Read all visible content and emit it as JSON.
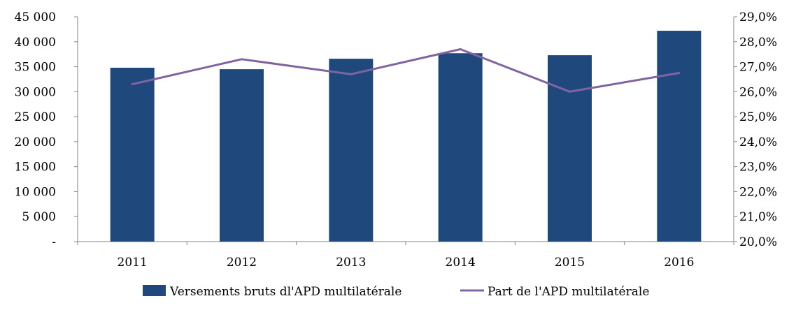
{
  "chart_data": {
    "type": "bar",
    "categories": [
      "2011",
      "2012",
      "2013",
      "2014",
      "2015",
      "2016"
    ],
    "series": [
      {
        "name": "Versements bruts dl'APD multilatérale",
        "type": "bar",
        "axis": "left",
        "color": "#1f497d",
        "values": [
          34800,
          34500,
          36600,
          37700,
          37300,
          42200
        ]
      },
      {
        "name": "Part de l'APD multilatérale",
        "type": "line",
        "axis": "right",
        "color": "#8064a2",
        "values": [
          26.3,
          27.3,
          26.7,
          27.7,
          26.0,
          26.75
        ]
      }
    ],
    "y_left": {
      "ylim": [
        0,
        45000
      ],
      "tick_labels": [
        "-",
        "5 000",
        "10 000",
        "15 000",
        "20 000",
        "25 000",
        "30 000",
        "35 000",
        "40 000",
        "45 000"
      ]
    },
    "y_right": {
      "ylim": [
        20.0,
        29.0
      ],
      "tick_labels": [
        "20,0%",
        "21,0%",
        "22,0%",
        "23,0%",
        "24,0%",
        "25,0%",
        "26,0%",
        "27,0%",
        "28,0%",
        "29,0%"
      ]
    },
    "grid": false,
    "legend": "bottom"
  }
}
